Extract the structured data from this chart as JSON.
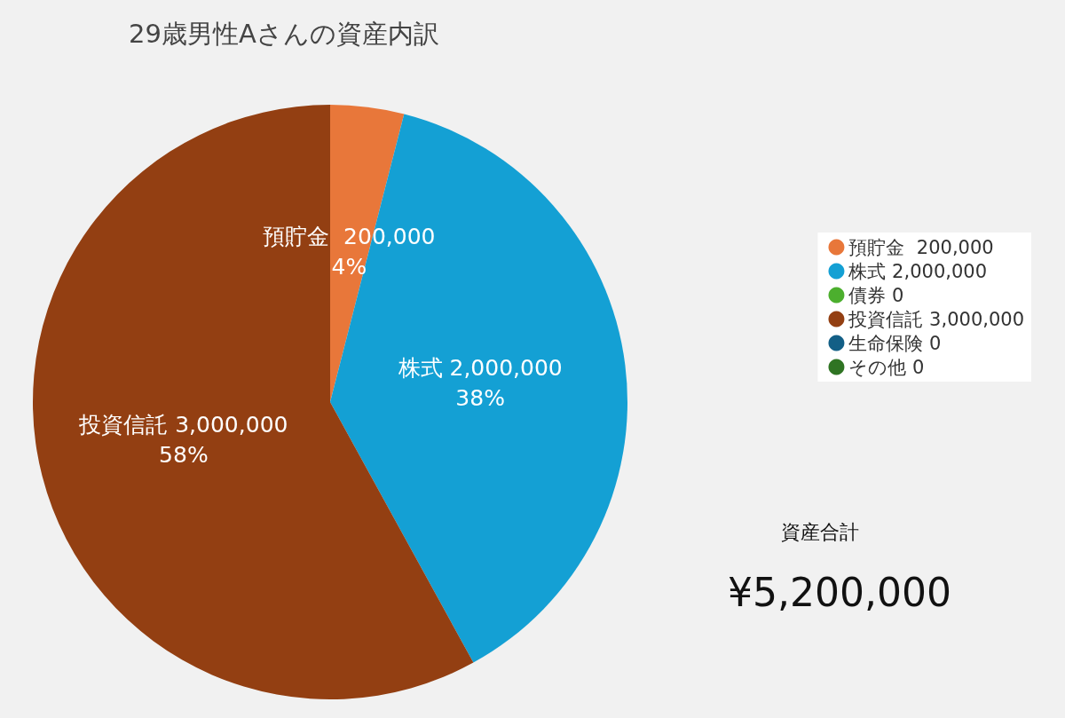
{
  "chart_data": {
    "type": "pie",
    "title": "29歳男性Aさんの資産内訳",
    "categories": [
      "預貯金  200,000",
      "株式 2,000,000",
      "債券 0",
      "投資信託 3,000,000",
      "生命保険 0",
      "その他 0"
    ],
    "values": [
      4,
      38,
      0,
      58,
      0,
      0
    ],
    "colors": [
      "#e8773a",
      "#14a0d4",
      "#4caf2e",
      "#933f12",
      "#135f86",
      "#2f7423"
    ],
    "value_labels": [
      "4%",
      "38%",
      null,
      "58%",
      null,
      null
    ],
    "legend": "right",
    "annotations": [
      "資産合計",
      "¥5,200,000"
    ]
  }
}
